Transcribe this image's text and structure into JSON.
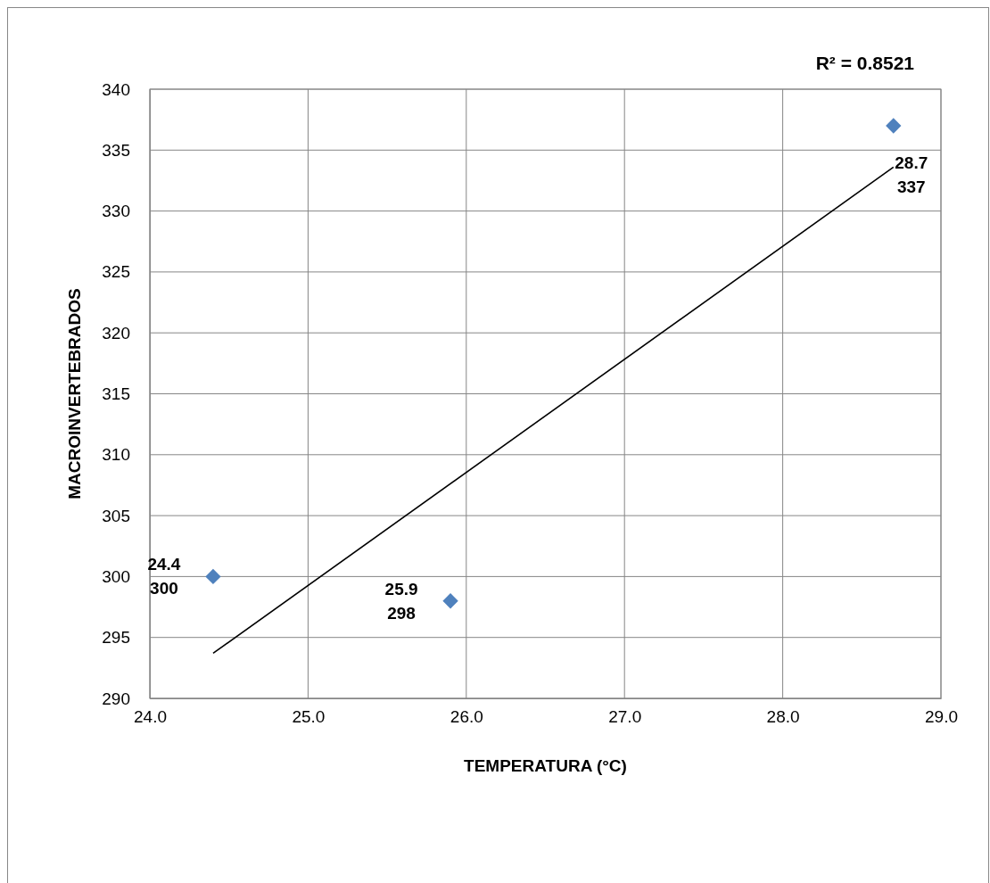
{
  "chart_data": {
    "type": "scatter",
    "xlabel": "TEMPERATURA (°C)",
    "ylabel": "MACROINVERTEBRADOS",
    "x": [
      24.4,
      25.9,
      28.7
    ],
    "series": [
      {
        "color": "#4f81bd",
        "marker": "diamond",
        "values": [
          300,
          298,
          337
        ]
      },
      {
        "type": "line",
        "color": "#000000",
        "marker": "none",
        "x": [
          24.4,
          28.7
        ],
        "values": [
          293.7,
          333.6
        ]
      }
    ],
    "annotations": [
      "R² = 0.8521",
      {
        "text": "24.4\n300",
        "x": 24.4,
        "y": 300
      },
      {
        "text": "25.9\n298",
        "x": 25.9,
        "y": 298
      },
      {
        "text": "28.7\n337",
        "x": 28.7,
        "y": 337
      }
    ],
    "xlim": [
      24.0,
      29.0
    ],
    "xticks": [
      {
        "value": 24,
        "label": "24.0"
      },
      {
        "value": 25,
        "label": "25.0"
      },
      {
        "value": 26,
        "label": "26.0"
      },
      {
        "value": 27,
        "label": "27.0"
      },
      {
        "value": 28,
        "label": "28.0"
      },
      {
        "value": 29,
        "label": "29.0"
      }
    ],
    "ylim": [
      290,
      340
    ],
    "yticks": [
      290,
      295,
      300,
      305,
      310,
      315,
      320,
      325,
      330,
      335,
      340
    ],
    "grid": true
  }
}
